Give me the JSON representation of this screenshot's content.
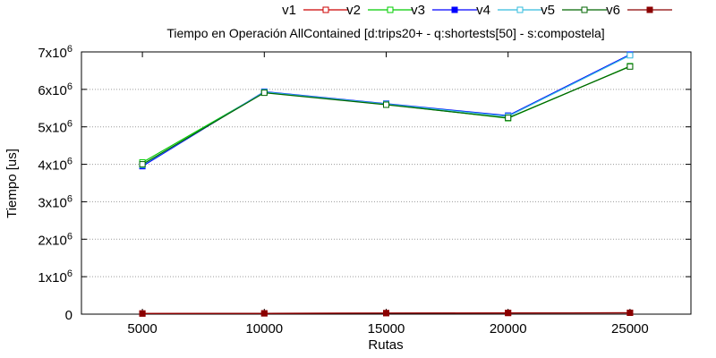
{
  "chart_data": {
    "type": "line",
    "title": "Tiempo en Operación AllContained [d:trips20+ - q:shortests[50] - s:compostela]",
    "xlabel": "Rutas",
    "ylabel": "Tiempo [us]",
    "x": [
      5000,
      10000,
      15000,
      20000,
      25000
    ],
    "xlim": [
      2500,
      27500
    ],
    "ylim": [
      0,
      7000000
    ],
    "x_ticks": [
      "5000",
      "10000",
      "15000",
      "20000",
      "25000"
    ],
    "y_ticks": [
      {
        "value": 0,
        "mant": "0",
        "exp": ""
      },
      {
        "value": 1000000,
        "mant": "1x10",
        "exp": "6"
      },
      {
        "value": 2000000,
        "mant": "2x10",
        "exp": "6"
      },
      {
        "value": 3000000,
        "mant": "3x10",
        "exp": "6"
      },
      {
        "value": 4000000,
        "mant": "4x10",
        "exp": "6"
      },
      {
        "value": 5000000,
        "mant": "5x10",
        "exp": "6"
      },
      {
        "value": 6000000,
        "mant": "6x10",
        "exp": "6"
      },
      {
        "value": 7000000,
        "mant": "7x10",
        "exp": "6"
      }
    ],
    "grid": true,
    "legend_position": "top-right",
    "series": [
      {
        "name": "v1",
        "color": "#cc0000",
        "marker": "open-square",
        "values": [
          18000,
          22000,
          28000,
          33000,
          37000
        ]
      },
      {
        "name": "v2",
        "color": "#00cc00",
        "marker": "open-square",
        "values": [
          4050000,
          5920000,
          5600000,
          5230000,
          6620000
        ]
      },
      {
        "name": "v3",
        "color": "#0000ff",
        "marker": "filled-square",
        "values": [
          3950000,
          5940000,
          5620000,
          5300000,
          6930000
        ]
      },
      {
        "name": "v4",
        "color": "#33bbdd",
        "marker": "open-square",
        "values": [
          3980000,
          5930000,
          5610000,
          5280000,
          6910000
        ]
      },
      {
        "name": "v5",
        "color": "#006600",
        "marker": "open-square",
        "values": [
          4000000,
          5910000,
          5590000,
          5240000,
          6610000
        ]
      },
      {
        "name": "v6",
        "color": "#8b0000",
        "marker": "filled-square",
        "values": [
          16000,
          21000,
          27000,
          31000,
          36000
        ]
      }
    ]
  }
}
